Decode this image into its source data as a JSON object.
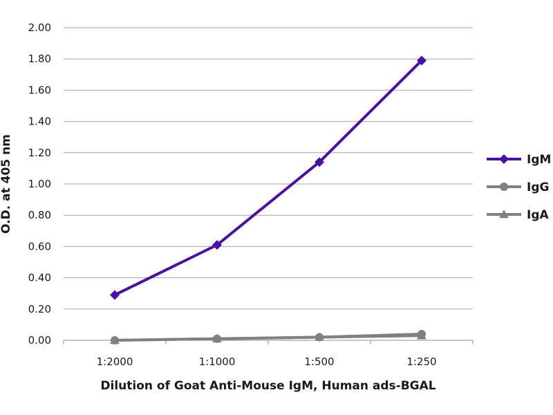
{
  "chart_data": {
    "type": "line",
    "title": "",
    "xlabel": "Dilution of Goat Anti-Mouse IgM, Human ads-BGAL",
    "ylabel": "O.D. at 405 nm",
    "categories": [
      "1:2000",
      "1:1000",
      "1:500",
      "1:250"
    ],
    "ylim": [
      0,
      2.0
    ],
    "yticks": [
      "0.00",
      "0.20",
      "0.40",
      "0.60",
      "0.80",
      "1.00",
      "1.20",
      "1.40",
      "1.60",
      "1.80",
      "2.00"
    ],
    "grid": true,
    "legend_position": "right",
    "series": [
      {
        "name": "IgM",
        "values": [
          0.29,
          0.61,
          1.14,
          1.79
        ],
        "color": "#4b0fa6",
        "marker": "diamond"
      },
      {
        "name": "IgG",
        "values": [
          0.0,
          0.01,
          0.02,
          0.04
        ],
        "color": "#808080",
        "marker": "circle"
      },
      {
        "name": "IgA",
        "values": [
          0.0,
          0.01,
          0.02,
          0.03
        ],
        "color": "#808080",
        "marker": "triangle"
      }
    ]
  }
}
